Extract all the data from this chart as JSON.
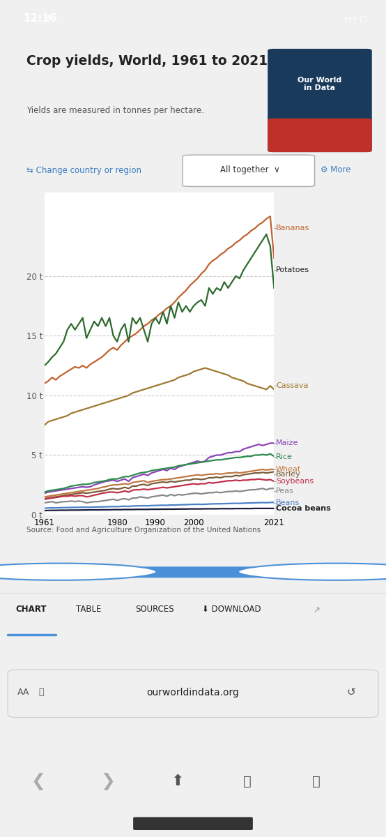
{
  "title": "Crop yields, World, 1961 to 2021",
  "subtitle": "Yields are measured in tonnes per hectare.",
  "source": "Source: Food and Agriculture Organization of the United Nations",
  "years": [
    1961,
    1962,
    1963,
    1964,
    1965,
    1966,
    1967,
    1968,
    1969,
    1970,
    1971,
    1972,
    1973,
    1974,
    1975,
    1976,
    1977,
    1978,
    1979,
    1980,
    1981,
    1982,
    1983,
    1984,
    1985,
    1986,
    1987,
    1988,
    1989,
    1990,
    1991,
    1992,
    1993,
    1994,
    1995,
    1996,
    1997,
    1998,
    1999,
    2000,
    2001,
    2002,
    2003,
    2004,
    2005,
    2006,
    2007,
    2008,
    2009,
    2010,
    2011,
    2012,
    2013,
    2014,
    2015,
    2016,
    2017,
    2018,
    2019,
    2020,
    2021
  ],
  "bananas": [
    11.0,
    11.2,
    11.5,
    11.3,
    11.6,
    11.8,
    12.0,
    12.2,
    12.4,
    12.3,
    12.5,
    12.3,
    12.6,
    12.8,
    13.0,
    13.2,
    13.5,
    13.8,
    14.0,
    13.8,
    14.2,
    14.5,
    14.8,
    15.0,
    15.2,
    15.5,
    15.8,
    16.0,
    16.3,
    16.5,
    16.8,
    17.0,
    17.3,
    17.5,
    17.8,
    18.2,
    18.5,
    18.8,
    19.2,
    19.5,
    19.8,
    20.2,
    20.5,
    21.0,
    21.3,
    21.5,
    21.8,
    22.0,
    22.3,
    22.5,
    22.8,
    23.0,
    23.3,
    23.5,
    23.8,
    24.0,
    24.3,
    24.5,
    24.8,
    25.0,
    21.5
  ],
  "potatoes": [
    12.5,
    12.8,
    13.2,
    13.5,
    14.0,
    14.5,
    15.5,
    16.0,
    15.5,
    16.0,
    16.5,
    14.8,
    15.5,
    16.2,
    15.8,
    16.5,
    15.8,
    16.5,
    15.0,
    14.5,
    15.5,
    16.0,
    14.5,
    16.5,
    16.0,
    16.5,
    15.5,
    14.5,
    16.0,
    16.5,
    16.0,
    17.0,
    16.0,
    17.5,
    16.5,
    17.8,
    17.0,
    17.5,
    17.0,
    17.5,
    17.8,
    18.0,
    17.5,
    19.0,
    18.5,
    19.0,
    18.8,
    19.5,
    19.0,
    19.5,
    20.0,
    19.8,
    20.5,
    21.0,
    21.5,
    22.0,
    22.5,
    23.0,
    23.5,
    22.5,
    19.0
  ],
  "cassava": [
    7.5,
    7.8,
    7.9,
    8.0,
    8.1,
    8.2,
    8.3,
    8.5,
    8.6,
    8.7,
    8.8,
    8.9,
    9.0,
    9.1,
    9.2,
    9.3,
    9.4,
    9.5,
    9.6,
    9.7,
    9.8,
    9.9,
    10.0,
    10.2,
    10.3,
    10.4,
    10.5,
    10.6,
    10.7,
    10.8,
    10.9,
    11.0,
    11.1,
    11.2,
    11.3,
    11.5,
    11.6,
    11.7,
    11.8,
    12.0,
    12.1,
    12.2,
    12.3,
    12.2,
    12.1,
    12.0,
    11.9,
    11.8,
    11.7,
    11.5,
    11.4,
    11.3,
    11.2,
    11.0,
    10.9,
    10.8,
    10.7,
    10.6,
    10.5,
    10.8,
    10.5
  ],
  "maize": [
    1.8,
    1.9,
    1.95,
    2.0,
    2.05,
    2.1,
    2.15,
    2.2,
    2.25,
    2.3,
    2.35,
    2.3,
    2.35,
    2.5,
    2.6,
    2.7,
    2.8,
    2.85,
    2.9,
    2.8,
    2.9,
    3.0,
    2.8,
    3.1,
    3.2,
    3.3,
    3.4,
    3.3,
    3.5,
    3.6,
    3.7,
    3.8,
    3.7,
    3.9,
    3.8,
    4.0,
    4.1,
    4.2,
    4.3,
    4.4,
    4.5,
    4.4,
    4.5,
    4.8,
    4.9,
    5.0,
    5.0,
    5.1,
    5.2,
    5.2,
    5.3,
    5.3,
    5.5,
    5.6,
    5.7,
    5.8,
    5.9,
    5.8,
    5.9,
    6.0,
    6.0
  ],
  "rice": [
    1.9,
    2.0,
    2.05,
    2.1,
    2.15,
    2.2,
    2.3,
    2.4,
    2.45,
    2.5,
    2.55,
    2.55,
    2.6,
    2.7,
    2.75,
    2.8,
    2.85,
    2.95,
    3.0,
    3.0,
    3.1,
    3.2,
    3.2,
    3.3,
    3.4,
    3.5,
    3.55,
    3.6,
    3.7,
    3.75,
    3.8,
    3.85,
    3.9,
    3.95,
    4.0,
    4.1,
    4.15,
    4.2,
    4.25,
    4.3,
    4.35,
    4.4,
    4.45,
    4.5,
    4.55,
    4.6,
    4.6,
    4.65,
    4.7,
    4.75,
    4.8,
    4.8,
    4.85,
    4.9,
    4.9,
    5.0,
    5.0,
    5.05,
    5.0,
    5.1,
    4.9
  ],
  "wheat": [
    1.5,
    1.55,
    1.6,
    1.65,
    1.7,
    1.75,
    1.8,
    1.85,
    1.9,
    1.95,
    2.0,
    2.05,
    2.1,
    2.15,
    2.2,
    2.3,
    2.35,
    2.45,
    2.5,
    2.5,
    2.55,
    2.6,
    2.55,
    2.7,
    2.75,
    2.8,
    2.85,
    2.7,
    2.8,
    2.85,
    2.9,
    2.95,
    2.95,
    3.0,
    3.05,
    3.1,
    3.15,
    3.2,
    3.25,
    3.3,
    3.35,
    3.3,
    3.35,
    3.4,
    3.4,
    3.45,
    3.4,
    3.45,
    3.5,
    3.5,
    3.55,
    3.5,
    3.55,
    3.6,
    3.65,
    3.7,
    3.75,
    3.8,
    3.75,
    3.8,
    3.8
  ],
  "barley": [
    1.35,
    1.4,
    1.45,
    1.5,
    1.55,
    1.6,
    1.65,
    1.7,
    1.75,
    1.8,
    1.85,
    1.8,
    1.85,
    1.9,
    1.95,
    2.0,
    2.05,
    2.15,
    2.2,
    2.15,
    2.2,
    2.3,
    2.2,
    2.4,
    2.4,
    2.5,
    2.55,
    2.45,
    2.6,
    2.65,
    2.7,
    2.75,
    2.7,
    2.8,
    2.75,
    2.8,
    2.85,
    2.9,
    2.9,
    3.0,
    3.0,
    2.95,
    3.0,
    3.1,
    3.1,
    3.15,
    3.1,
    3.2,
    3.2,
    3.2,
    3.3,
    3.25,
    3.35,
    3.4,
    3.45,
    3.5,
    3.5,
    3.55,
    3.5,
    3.55,
    3.6
  ],
  "soybeans": [
    1.3,
    1.35,
    1.4,
    1.45,
    1.5,
    1.55,
    1.55,
    1.6,
    1.55,
    1.6,
    1.6,
    1.5,
    1.55,
    1.65,
    1.7,
    1.8,
    1.85,
    1.9,
    1.9,
    1.85,
    1.9,
    2.0,
    1.9,
    2.05,
    2.1,
    2.1,
    2.15,
    2.1,
    2.15,
    2.2,
    2.25,
    2.3,
    2.25,
    2.3,
    2.35,
    2.4,
    2.45,
    2.5,
    2.55,
    2.6,
    2.55,
    2.6,
    2.6,
    2.7,
    2.65,
    2.7,
    2.75,
    2.8,
    2.85,
    2.85,
    2.9,
    2.85,
    2.9,
    2.9,
    2.95,
    2.95,
    3.0,
    2.95,
    2.9,
    2.95,
    2.8
  ],
  "peas": [
    1.0,
    1.05,
    1.1,
    1.0,
    1.05,
    1.1,
    1.1,
    1.15,
    1.1,
    1.15,
    1.1,
    1.0,
    1.05,
    1.1,
    1.1,
    1.15,
    1.2,
    1.25,
    1.3,
    1.2,
    1.3,
    1.35,
    1.25,
    1.4,
    1.4,
    1.5,
    1.45,
    1.4,
    1.5,
    1.55,
    1.6,
    1.65,
    1.55,
    1.7,
    1.6,
    1.7,
    1.65,
    1.7,
    1.75,
    1.8,
    1.8,
    1.75,
    1.8,
    1.85,
    1.85,
    1.9,
    1.85,
    1.9,
    1.95,
    1.95,
    2.0,
    1.95,
    2.0,
    2.05,
    2.1,
    2.1,
    2.15,
    2.2,
    2.1,
    2.2,
    2.2
  ],
  "beans": [
    0.55,
    0.57,
    0.58,
    0.58,
    0.59,
    0.6,
    0.6,
    0.61,
    0.62,
    0.62,
    0.63,
    0.63,
    0.63,
    0.64,
    0.65,
    0.66,
    0.67,
    0.68,
    0.69,
    0.68,
    0.7,
    0.71,
    0.7,
    0.73,
    0.74,
    0.75,
    0.76,
    0.75,
    0.77,
    0.78,
    0.79,
    0.8,
    0.79,
    0.82,
    0.81,
    0.83,
    0.84,
    0.85,
    0.86,
    0.87,
    0.88,
    0.87,
    0.88,
    0.9,
    0.91,
    0.92,
    0.92,
    0.93,
    0.94,
    0.95,
    0.96,
    0.95,
    0.97,
    0.98,
    0.99,
    1.0,
    1.01,
    1.02,
    1.01,
    1.03,
    1.04
  ],
  "cocoa_beans": [
    0.35,
    0.36,
    0.37,
    0.37,
    0.38,
    0.38,
    0.38,
    0.39,
    0.39,
    0.39,
    0.4,
    0.4,
    0.41,
    0.41,
    0.41,
    0.42,
    0.42,
    0.42,
    0.43,
    0.43,
    0.43,
    0.44,
    0.44,
    0.44,
    0.45,
    0.45,
    0.45,
    0.45,
    0.46,
    0.46,
    0.46,
    0.47,
    0.47,
    0.47,
    0.47,
    0.48,
    0.48,
    0.48,
    0.49,
    0.49,
    0.49,
    0.49,
    0.5,
    0.5,
    0.5,
    0.5,
    0.51,
    0.51,
    0.51,
    0.51,
    0.52,
    0.52,
    0.52,
    0.52,
    0.52,
    0.53,
    0.53,
    0.53,
    0.53,
    0.53,
    0.53
  ],
  "crop_colors": {
    "bananas": "#c0622e",
    "potatoes": "#2d6a2d",
    "cassava": "#a07830",
    "maize": "#8b44b8",
    "rice": "#2d8a4e",
    "wheat": "#c07840",
    "barley": "#7a5c3a",
    "soybeans": "#c0304a",
    "peas": "#888888",
    "beans": "#4a80c4",
    "cocoa_beans": "#1a1a3a"
  },
  "ylim": [
    0,
    27
  ],
  "xlim": [
    1961,
    2021
  ],
  "yticks": [
    0,
    5,
    10,
    15,
    20
  ],
  "xticks": [
    1961,
    1980,
    1990,
    2000,
    2021
  ],
  "label_data": [
    [
      "Bananas",
      24.0,
      "#c0622e",
      false
    ],
    [
      "Potatoes",
      20.5,
      "#222222",
      false
    ],
    [
      "Cassava",
      10.8,
      "#a07830",
      false
    ],
    [
      "Maize",
      6.0,
      "#8b44b8",
      false
    ],
    [
      "Rice",
      4.85,
      "#2d8a4e",
      false
    ],
    [
      "Wheat",
      3.8,
      "#c07840",
      false
    ],
    [
      "Barley",
      3.4,
      "#7a5c3a",
      false
    ],
    [
      "Soybeans",
      2.8,
      "#c0304a",
      false
    ],
    [
      "Peas",
      2.0,
      "#888888",
      false
    ],
    [
      "Beans",
      1.0,
      "#4a80c4",
      false
    ],
    [
      "Cocoa beans",
      0.5,
      "#222222",
      true
    ]
  ]
}
